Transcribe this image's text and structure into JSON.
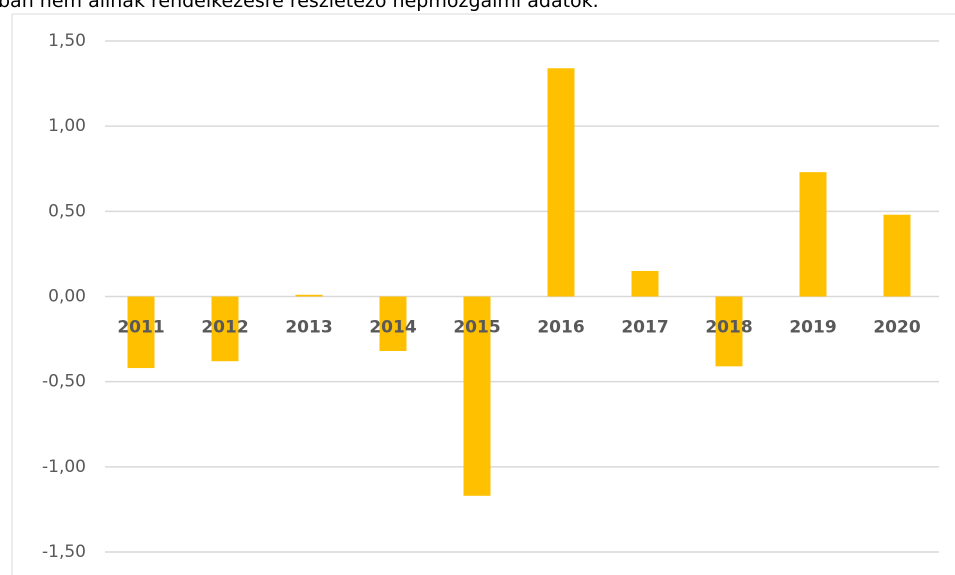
{
  "chart_data": {
    "type": "bar",
    "title": "ban nem állnak rendelkezésre részletező népmozgalmi adatok.",
    "categories": [
      "2011",
      "2012",
      "2013",
      "2014",
      "2015",
      "2016",
      "2017",
      "2018",
      "2019",
      "2020"
    ],
    "values": [
      -0.42,
      -0.38,
      0.01,
      -0.32,
      -1.17,
      1.34,
      0.15,
      -0.41,
      0.73,
      0.48
    ],
    "color": "#ffc000",
    "ylim": [
      -1.5,
      1.5
    ],
    "yticks": [
      {
        "value": 1.5,
        "label": "1,50"
      },
      {
        "value": 1.0,
        "label": "1,00"
      },
      {
        "value": 0.5,
        "label": "0,50"
      },
      {
        "value": 0,
        "label": "0,00"
      },
      {
        "value": -0.5,
        "label": "-0,50"
      },
      {
        "value": -1.0,
        "label": "-1,00"
      },
      {
        "value": -1.5,
        "label": "-1,50"
      }
    ],
    "grid": true
  }
}
